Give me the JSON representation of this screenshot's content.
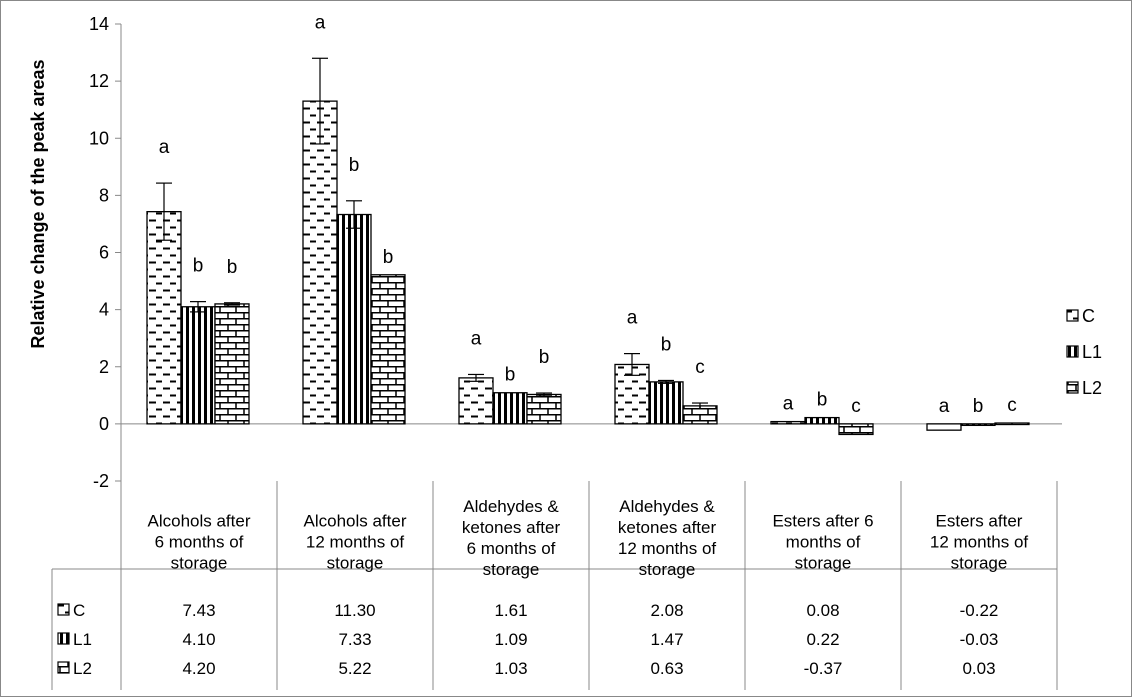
{
  "chart_data": {
    "type": "bar",
    "ylabel": "Relative change of the peak areas",
    "ylim": [
      -2,
      14
    ],
    "yticks": [
      -2,
      0,
      2,
      4,
      6,
      8,
      10,
      12,
      14
    ],
    "grid": false,
    "legend_position": "right",
    "categories": [
      [
        "Alcohols after",
        "6 months of",
        "storage"
      ],
      [
        "Alcohols after",
        "12 months of",
        "storage"
      ],
      [
        "Aldehydes &",
        "ketones after",
        "6 months of",
        "storage"
      ],
      [
        "Aldehydes &",
        "ketones after",
        "12 months of",
        "storage"
      ],
      [
        "Esters after 6",
        "months of",
        "storage"
      ],
      [
        "Esters after",
        "12 months of",
        "storage"
      ]
    ],
    "series": [
      {
        "name": "C",
        "pattern": "dashes",
        "values": [
          7.43,
          11.3,
          1.61,
          2.08,
          0.08,
          -0.22
        ],
        "table_values": [
          "7.43",
          "11.30",
          "1.61",
          "2.08",
          "0.08",
          "-0.22"
        ],
        "errors": [
          1.0,
          1.5,
          0.12,
          0.38,
          0.0,
          0.0
        ],
        "letters": [
          "a",
          "a",
          "a",
          "a",
          "a",
          "a"
        ]
      },
      {
        "name": "L1",
        "pattern": "vertical",
        "values": [
          4.1,
          7.33,
          1.09,
          1.47,
          0.22,
          -0.03
        ],
        "table_values": [
          "4.10",
          "7.33",
          "1.09",
          "1.47",
          "0.22",
          "-0.03"
        ],
        "errors": [
          0.18,
          0.48,
          0.0,
          0.05,
          0.0,
          0.0
        ],
        "letters": [
          "b",
          "b",
          "b",
          "b",
          "b",
          "b"
        ]
      },
      {
        "name": "L2",
        "pattern": "brick",
        "values": [
          4.2,
          5.22,
          1.03,
          0.63,
          -0.37,
          0.03
        ],
        "table_values": [
          "4.20",
          "5.22",
          "1.03",
          "0.63",
          "-0.37",
          "0.03"
        ],
        "errors": [
          0.04,
          0.0,
          0.05,
          0.1,
          0.0,
          0.0
        ],
        "letters": [
          "b",
          "b",
          "b",
          "c",
          "c",
          "c"
        ]
      }
    ]
  }
}
